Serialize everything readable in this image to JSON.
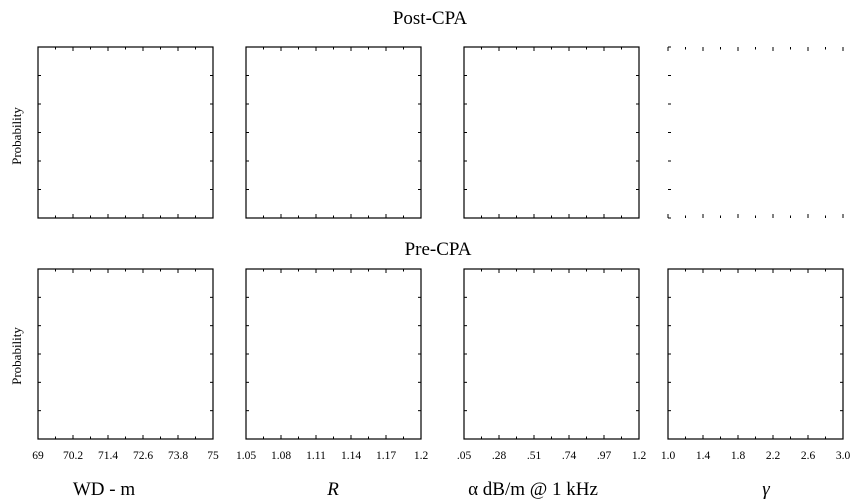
{
  "chart_data": [
    {
      "type": "histogram",
      "title": "Post-CPA",
      "ylabel": "Probability",
      "subplots": [
        {
          "xlabel": "WD - m",
          "xlim": [
            69,
            75
          ],
          "series": []
        },
        {
          "xlabel": "R",
          "xlim": [
            1.05,
            1.2
          ],
          "series": []
        },
        {
          "xlabel": "α  dB/m @ 1 kHz",
          "xlim": [
            0.05,
            1.2
          ],
          "series": []
        },
        {
          "xlabel": "γ",
          "xlim": [
            1.0,
            3.0
          ],
          "series": []
        }
      ]
    },
    {
      "type": "histogram",
      "title": "Pre-CPA",
      "ylabel": "Probability",
      "subplots": [
        {
          "xlabel": "WD - m",
          "xlim": [
            69,
            75
          ],
          "xticks": [
            "69",
            "70.2",
            "71.4",
            "72.6",
            "73.8",
            "75"
          ],
          "series": []
        },
        {
          "xlabel": "R",
          "xlim": [
            1.05,
            1.2
          ],
          "xticks": [
            "1.05",
            "1.08",
            "1.11",
            "1.14",
            "1.17",
            "1.2"
          ],
          "series": []
        },
        {
          "xlabel": "α  dB/m @ 1 kHz",
          "xlim": [
            0.05,
            1.2
          ],
          "xticks": [
            ".05",
            ".28",
            ".51",
            ".74",
            ".97",
            "1.2"
          ],
          "series": []
        },
        {
          "xlabel": "γ",
          "xlim": [
            1.0,
            3.0
          ],
          "xticks": [
            "1.0",
            "1.4",
            "1.8",
            "2.2",
            "2.6",
            "3.0"
          ],
          "series": []
        }
      ]
    }
  ],
  "figure": {
    "top_title": "Post-CPA",
    "mid_title": "Pre-CPA",
    "ylabel_top": "Probability",
    "ylabel_bottom": "Probability",
    "columns": [
      {
        "xlabel": "WD - m",
        "ticks": [
          "69",
          "70.2",
          "71.4",
          "72.6",
          "73.8",
          "75"
        ]
      },
      {
        "xlabel": "R",
        "ticks": [
          "1.05",
          "1.08",
          "1.11",
          "1.14",
          "1.17",
          "1.2"
        ]
      },
      {
        "xlabel": "α  dB/m @ 1 kHz",
        "ticks": [
          ".05",
          ".28",
          ".51",
          ".74",
          ".97",
          "1.2"
        ]
      },
      {
        "xlabel": "γ",
        "ticks": [
          "1.0",
          "1.4",
          "1.8",
          "2.2",
          "2.6",
          "3.0"
        ]
      }
    ]
  }
}
